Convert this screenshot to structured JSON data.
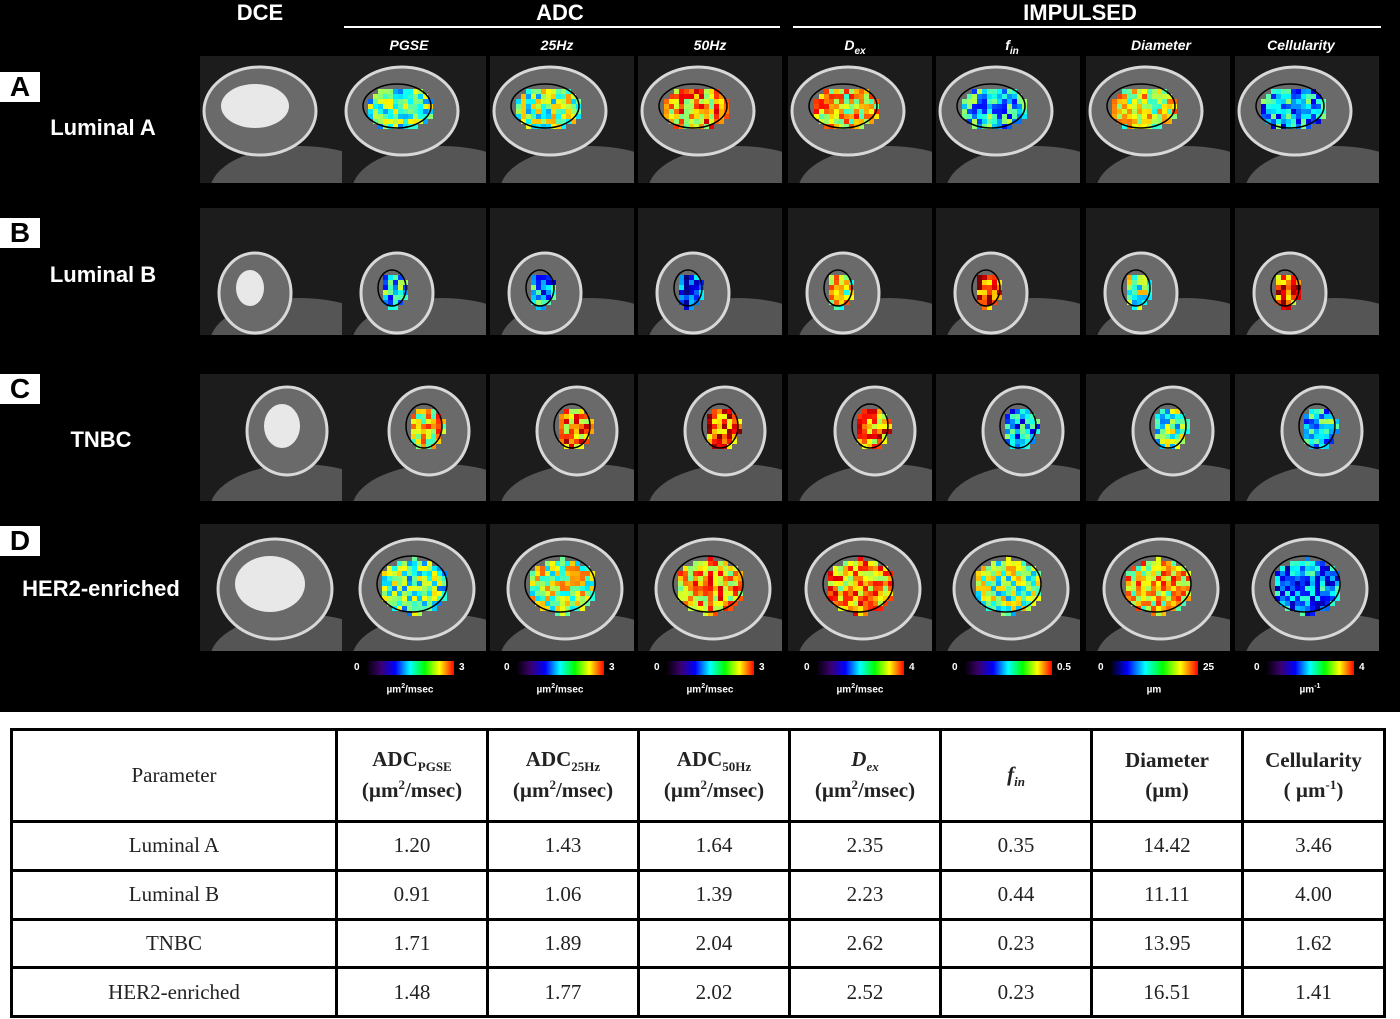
{
  "figure": {
    "headers": {
      "dce": "DCE",
      "adc": "ADC",
      "impulsed": "IMPULSED"
    },
    "subheaders": {
      "pgse": "PGSE",
      "hz25": "25Hz",
      "hz50": "50Hz",
      "dex_main": "D",
      "dex_sub": "ex",
      "fin_main": "f",
      "fin_sub": "in",
      "diameter": "Diameter",
      "cellularity": "Cellularity"
    },
    "rows": [
      {
        "letter": "A",
        "label": "Luminal A"
      },
      {
        "letter": "B",
        "label": "Luminal B"
      },
      {
        "letter": "C",
        "label": "TNBC"
      },
      {
        "letter": "D",
        "label": "HER2-enriched"
      }
    ],
    "colorbars": [
      {
        "min": "0",
        "max": "3",
        "unit_main": "µm",
        "unit_sup": "2",
        "unit_rest": "/msec"
      },
      {
        "min": "0",
        "max": "3",
        "unit_main": "µm",
        "unit_sup": "2",
        "unit_rest": "/msec"
      },
      {
        "min": "0",
        "max": "3",
        "unit_main": "µm",
        "unit_sup": "2",
        "unit_rest": "/msec"
      },
      {
        "min": "0",
        "max": "4",
        "unit_main": "µm",
        "unit_sup": "2",
        "unit_rest": "/msec"
      },
      {
        "min": "0",
        "max": "0.5",
        "unit_main": "",
        "unit_sup": "",
        "unit_rest": ""
      },
      {
        "min": "0",
        "max": "25",
        "unit_main": "µm",
        "unit_sup": "",
        "unit_rest": ""
      },
      {
        "min": "0",
        "max": "4",
        "unit_main": "µm",
        "unit_sup": "-1",
        "unit_rest": ""
      }
    ]
  },
  "table": {
    "headers": {
      "parameter": "Parameter",
      "adc_main": "ADC",
      "pgse_sub": "PGSE",
      "hz25_sub": "25Hz",
      "hz50_sub": "50Hz",
      "unit_a": "(µm",
      "unit_sup": "2",
      "unit_b": "/msec)",
      "dex_main": "D",
      "dex_sub": "ex",
      "fin_main": "f",
      "fin_sub": "in",
      "diameter": "Diameter",
      "diameter_unit": "(µm)",
      "cellularity": "Cellularity",
      "cell_unit_a": "( µm",
      "cell_unit_sup": "-1",
      "cell_unit_b": ")"
    },
    "rows": [
      {
        "name": "Luminal A",
        "values": [
          "1.20",
          "1.43",
          "1.64",
          "2.35",
          "0.35",
          "14.42",
          "3.46"
        ]
      },
      {
        "name": "Luminal B",
        "values": [
          "0.91",
          "1.06",
          "1.39",
          "2.23",
          "0.44",
          "11.11",
          "4.00"
        ]
      },
      {
        "name": "TNBC",
        "values": [
          "1.71",
          "1.89",
          "2.04",
          "2.62",
          "0.23",
          "13.95",
          "1.62"
        ]
      },
      {
        "name": "HER2-enriched",
        "values": [
          "1.48",
          "1.77",
          "2.02",
          "2.52",
          "0.23",
          "16.51",
          "1.41"
        ]
      }
    ]
  }
}
